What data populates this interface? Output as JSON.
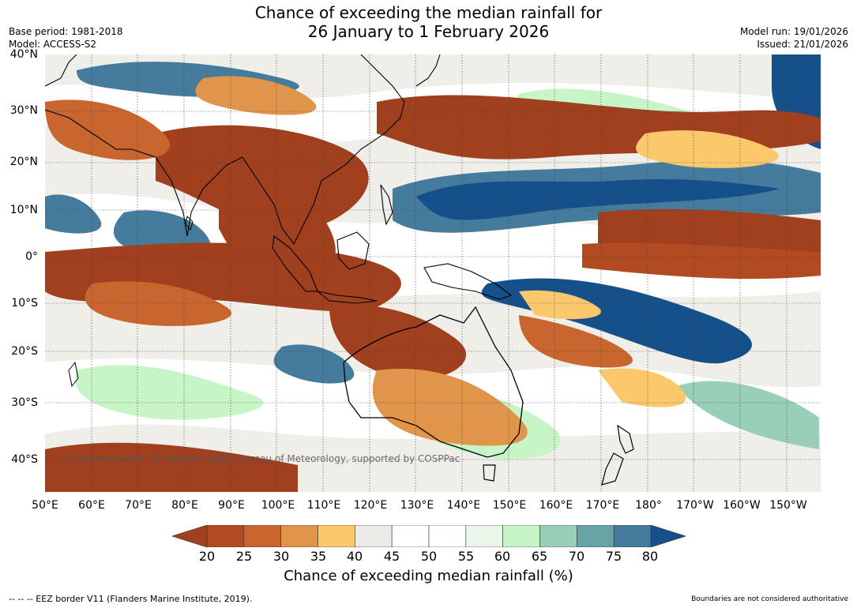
{
  "header": {
    "title_line1": "Chance of exceeding the median rainfall for",
    "title_line2": "26 January to 1 February 2026",
    "base_period": "Base period: 1981-2018",
    "model": "Model: ACCESS-S2",
    "model_run": "Model run: 19/01/2026",
    "issued": "Issued: 21/01/2026"
  },
  "map": {
    "lat_labels": [
      "40°N",
      "30°N",
      "20°N",
      "10°N",
      "0°",
      "10°S",
      "20°S",
      "30°S",
      "40°S"
    ],
    "lon_labels": [
      "50°E",
      "60°E",
      "70°E",
      "80°E",
      "90°E",
      "100°E",
      "110°E",
      "120°E",
      "130°E",
      "140°E",
      "150°E",
      "160°E",
      "170°E",
      "180°",
      "170°W",
      "160°W",
      "150°W"
    ],
    "credit": "© Commonwealth of Australia 2026, Bureau of Meteorology, supported by COSPPac"
  },
  "colorbar": {
    "ticks": [
      "20",
      "25",
      "30",
      "35",
      "40",
      "45",
      "50",
      "55",
      "60",
      "65",
      "70",
      "75",
      "80"
    ],
    "colors": [
      "#a0401f",
      "#b24a22",
      "#c9652f",
      "#e0954a",
      "#fbc86c",
      "#eceae6",
      "#ffffff",
      "#ffffff",
      "#eaf6ea",
      "#c8f5c8",
      "#98cfb6",
      "#6aa3a6",
      "#457b9c",
      "#15508a"
    ],
    "label": "Chance of exceeding median rainfall (%)"
  },
  "footer": {
    "eez_note": "--  --  -- EEZ border V11 (Flanders Marine Institute, 2019).",
    "boundaries_note": "Boundaries are not considered authoritative"
  }
}
